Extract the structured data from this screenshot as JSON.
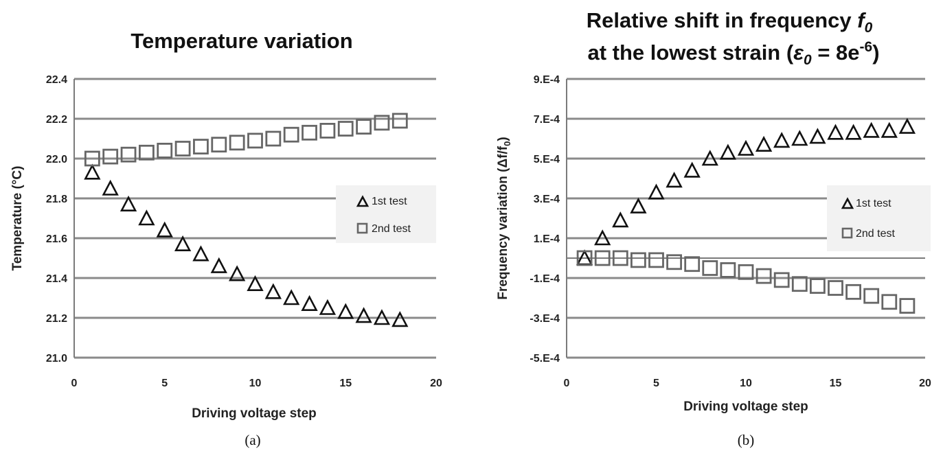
{
  "chart_data": [
    {
      "type": "scatter",
      "panel_label": "(a)",
      "title": "Temperature variation",
      "xlabel": "Driving voltage step",
      "ylabel": "Temperature (°C)",
      "xlim": [
        0,
        20
      ],
      "ylim": [
        21.0,
        22.4
      ],
      "xticks": [
        "0",
        "5",
        "10",
        "15",
        "20"
      ],
      "yticks": [
        "21.0",
        "21.2",
        "21.4",
        "21.6",
        "21.8",
        "22.0",
        "22.2",
        "22.4"
      ],
      "grid": "horizontal",
      "legend_position": "right",
      "series": [
        {
          "name": "1st test",
          "marker": "triangle",
          "x": [
            1,
            2,
            3,
            4,
            5,
            6,
            7,
            8,
            9,
            10,
            11,
            12,
            13,
            14,
            15,
            16,
            17,
            18
          ],
          "y": [
            21.93,
            21.85,
            21.77,
            21.7,
            21.64,
            21.57,
            21.52,
            21.46,
            21.42,
            21.37,
            21.33,
            21.3,
            21.27,
            21.25,
            21.23,
            21.21,
            21.2,
            21.19
          ]
        },
        {
          "name": "2nd test",
          "marker": "square",
          "x": [
            1,
            2,
            3,
            4,
            5,
            6,
            7,
            8,
            9,
            10,
            11,
            12,
            13,
            14,
            15,
            16,
            17,
            18
          ],
          "y": [
            22.0,
            22.01,
            22.02,
            22.03,
            22.04,
            22.05,
            22.06,
            22.07,
            22.08,
            22.09,
            22.1,
            22.12,
            22.13,
            22.14,
            22.15,
            22.16,
            22.18,
            22.19
          ]
        }
      ]
    },
    {
      "type": "scatter",
      "panel_label": "(b)",
      "title": "Relative shift in frequency f0 at the lowest strain (ε0 = 8e-6)",
      "title_line1": "Relative shift in frequency ",
      "title_line1_italic": "f",
      "title_line1_sub": "0",
      "title_line2_a": "at  the lowest strain (",
      "title_line2_eps": "ε",
      "title_line2_eps_sub": "0",
      "title_line2_b": " = 8e",
      "title_line2_sup": "-6",
      "title_line2_c": ")",
      "xlabel": "Driving voltage step",
      "ylabel": "Frequency variation (Δf/f0)",
      "ylabel_main": "Frequency variation (Δf/f",
      "ylabel_sub": "0",
      "ylabel_end": ")",
      "xlim": [
        0,
        20
      ],
      "ylim": [
        -0.0005,
        0.0009
      ],
      "xticks": [
        "0",
        "5",
        "10",
        "15",
        "20"
      ],
      "yticks": [
        "-5.E-4",
        "-3.E-4",
        "-1.E-4",
        "1.E-4",
        "3.E-4",
        "5.E-4",
        "7.E-4",
        "9.E-4"
      ],
      "grid": "horizontal",
      "legend_position": "right",
      "series": [
        {
          "name": "1st test",
          "marker": "triangle",
          "x": [
            1,
            2,
            3,
            4,
            5,
            6,
            7,
            8,
            9,
            10,
            11,
            12,
            13,
            14,
            15,
            16,
            17,
            18,
            19
          ],
          "y": [
            0.0,
            0.0001,
            0.00019,
            0.00026,
            0.00033,
            0.00039,
            0.00044,
            0.0005,
            0.00053,
            0.00055,
            0.00057,
            0.00059,
            0.0006,
            0.00061,
            0.00063,
            0.00063,
            0.00064,
            0.00064,
            0.00066
          ]
        },
        {
          "name": "2nd test",
          "marker": "square",
          "x": [
            1,
            2,
            3,
            4,
            5,
            6,
            7,
            8,
            9,
            10,
            11,
            12,
            13,
            14,
            15,
            16,
            17,
            18,
            19
          ],
          "y": [
            0.0,
            0.0,
            0.0,
            -1e-05,
            -1e-05,
            -2e-05,
            -3e-05,
            -5e-05,
            -6e-05,
            -7e-05,
            -9e-05,
            -0.00011,
            -0.00013,
            -0.00014,
            -0.00015,
            -0.00017,
            -0.00019,
            -0.00022,
            -0.00024
          ]
        }
      ]
    }
  ]
}
